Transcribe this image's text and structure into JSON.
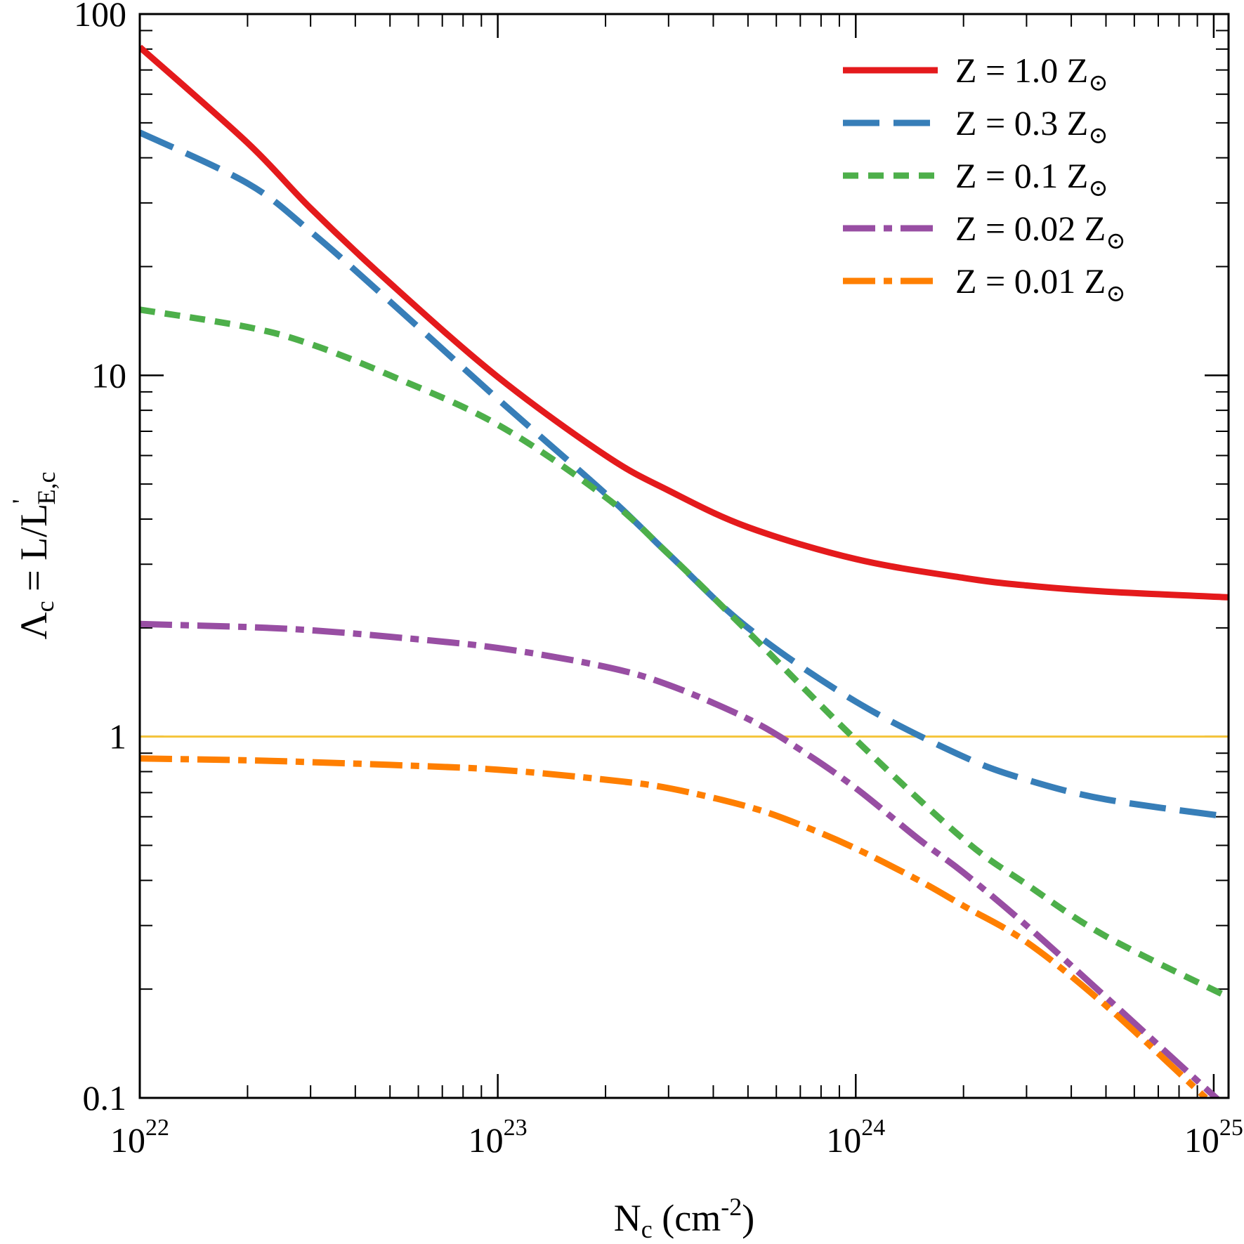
{
  "chart_data": {
    "type": "line",
    "x_scale": "log",
    "y_scale": "log",
    "xlim": [
      1e+22,
      1.1e+25
    ],
    "ylim": [
      0.1,
      100
    ],
    "x_tick_labels": [
      {
        "value": 1e+22,
        "mantissa": "10",
        "exponent": "22"
      },
      {
        "value": 1e+23,
        "mantissa": "10",
        "exponent": "23"
      },
      {
        "value": 1e+24,
        "mantissa": "10",
        "exponent": "24"
      },
      {
        "value": 1e+25,
        "mantissa": "10",
        "exponent": "25"
      }
    ],
    "y_tick_labels": [
      {
        "value": 100,
        "label": "100"
      },
      {
        "value": 10,
        "label": "10"
      },
      {
        "value": 1,
        "label": "1"
      },
      {
        "value": 0.1,
        "label": "0.1"
      }
    ],
    "xlabel": {
      "main": "N",
      "sub": "c",
      "rest": " (cm",
      "sup": "-2",
      "end": ")"
    },
    "ylabel": {
      "lambda": "Λ",
      "sub1": "c",
      "mid": " = L/L",
      "sup": "'",
      "sub2": "E,c"
    },
    "reference_line": {
      "y": 1,
      "color": "#f5c43a"
    },
    "series": [
      {
        "name": "Z = 1.0 Z⊙",
        "label_prefix": "Z = 1.0 Z",
        "color": "#e41a1c",
        "style": "solid",
        "x": [
          1e+22,
          2e+22,
          3e+22,
          5e+22,
          1e+23,
          2e+23,
          3e+23,
          5e+23,
          1e+24,
          2e+24,
          3e+24,
          5e+24,
          1.1e+25
        ],
        "y": [
          81,
          44,
          29,
          18,
          9.9,
          6.0,
          4.8,
          3.8,
          3.1,
          2.75,
          2.62,
          2.52,
          2.43
        ]
      },
      {
        "name": "Z = 0.3 Z⊙",
        "label_prefix": "Z = 0.3 Z",
        "color": "#377eb8",
        "style": "longdash",
        "x": [
          1e+22,
          2e+22,
          3e+22,
          5e+22,
          1e+23,
          2e+23,
          3e+23,
          5e+23,
          1e+24,
          2e+24,
          3e+24,
          5e+24,
          1.1e+25
        ],
        "y": [
          47,
          34,
          25,
          16,
          8.6,
          4.7,
          3.2,
          2.0,
          1.25,
          0.88,
          0.76,
          0.67,
          0.6
        ]
      },
      {
        "name": "Z = 0.1 Z⊙",
        "label_prefix": "Z = 0.1 Z",
        "color": "#4daf4a",
        "style": "shortdash",
        "x": [
          1e+22,
          2e+22,
          3e+22,
          5e+22,
          1e+23,
          2e+23,
          3e+23,
          5e+23,
          1e+24,
          2e+24,
          3e+24,
          5e+24,
          1.1e+25
        ],
        "y": [
          15.2,
          13.6,
          12.2,
          10.0,
          7.3,
          4.6,
          3.2,
          1.95,
          0.98,
          0.52,
          0.39,
          0.28,
          0.19
        ]
      },
      {
        "name": "Z = 0.02 Z⊙",
        "label_prefix": "Z = 0.02 Z",
        "color": "#984ea3",
        "style": "dashdot",
        "x": [
          1e+22,
          2e+22,
          3e+22,
          5e+22,
          1e+23,
          2e+23,
          3e+23,
          5e+23,
          7e+23,
          1e+24,
          1.5e+24,
          2e+24,
          3e+24,
          5e+24,
          1.05e+25
        ],
        "y": [
          2.05,
          2.01,
          1.97,
          1.89,
          1.76,
          1.56,
          1.39,
          1.12,
          0.92,
          0.72,
          0.52,
          0.42,
          0.3,
          0.19,
          0.097
        ]
      },
      {
        "name": "Z = 0.01 Z⊙",
        "label_prefix": "Z = 0.01 Z",
        "color": "#ff7f00",
        "style": "dashdot",
        "x": [
          1e+22,
          2e+22,
          3e+22,
          5e+22,
          1e+23,
          2e+23,
          3e+23,
          5e+23,
          7e+23,
          1e+24,
          1.5e+24,
          2e+24,
          3e+24,
          5e+24,
          9.5e+24
        ],
        "y": [
          0.87,
          0.86,
          0.85,
          0.835,
          0.81,
          0.76,
          0.72,
          0.64,
          0.57,
          0.49,
          0.4,
          0.34,
          0.27,
          0.18,
          0.1
        ]
      }
    ]
  }
}
